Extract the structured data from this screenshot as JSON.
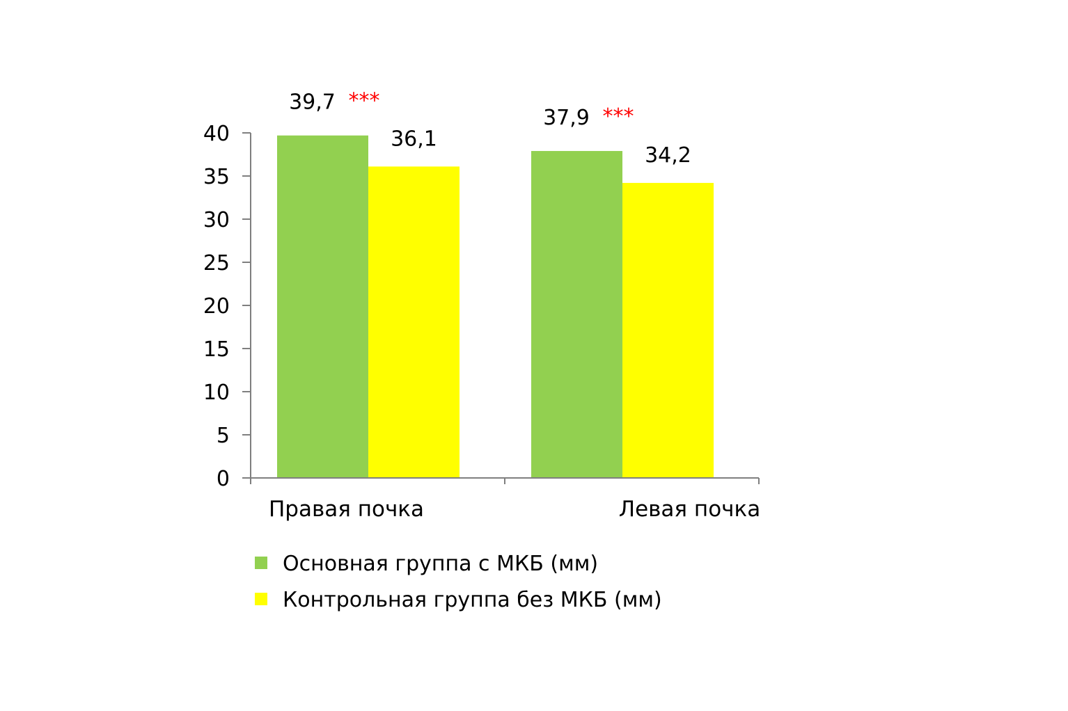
{
  "chart_data": {
    "type": "bar",
    "categories": [
      "Правая почка",
      "Левая почка"
    ],
    "series": [
      {
        "name": "Основная группа с МКБ (мм)",
        "color": "#92d050",
        "values": [
          39.7,
          37.9
        ],
        "labels": [
          "39,7",
          "37,9"
        ],
        "significance": [
          "***",
          "***"
        ]
      },
      {
        "name": "Контрольная группа без МКБ (мм)",
        "color": "#ffff00",
        "values": [
          36.1,
          34.2
        ],
        "labels": [
          "36,1",
          "34,2"
        ],
        "significance": [
          "",
          ""
        ]
      }
    ],
    "ylim": [
      0,
      40
    ],
    "yticks": [
      0,
      5,
      10,
      15,
      20,
      25,
      30,
      35,
      40
    ],
    "ytick_labels": [
      "0",
      "5",
      "10",
      "15",
      "20",
      "25",
      "30",
      "35",
      "40"
    ],
    "significance_color": "#ff0000",
    "grid": false,
    "legend_position": "bottom"
  }
}
